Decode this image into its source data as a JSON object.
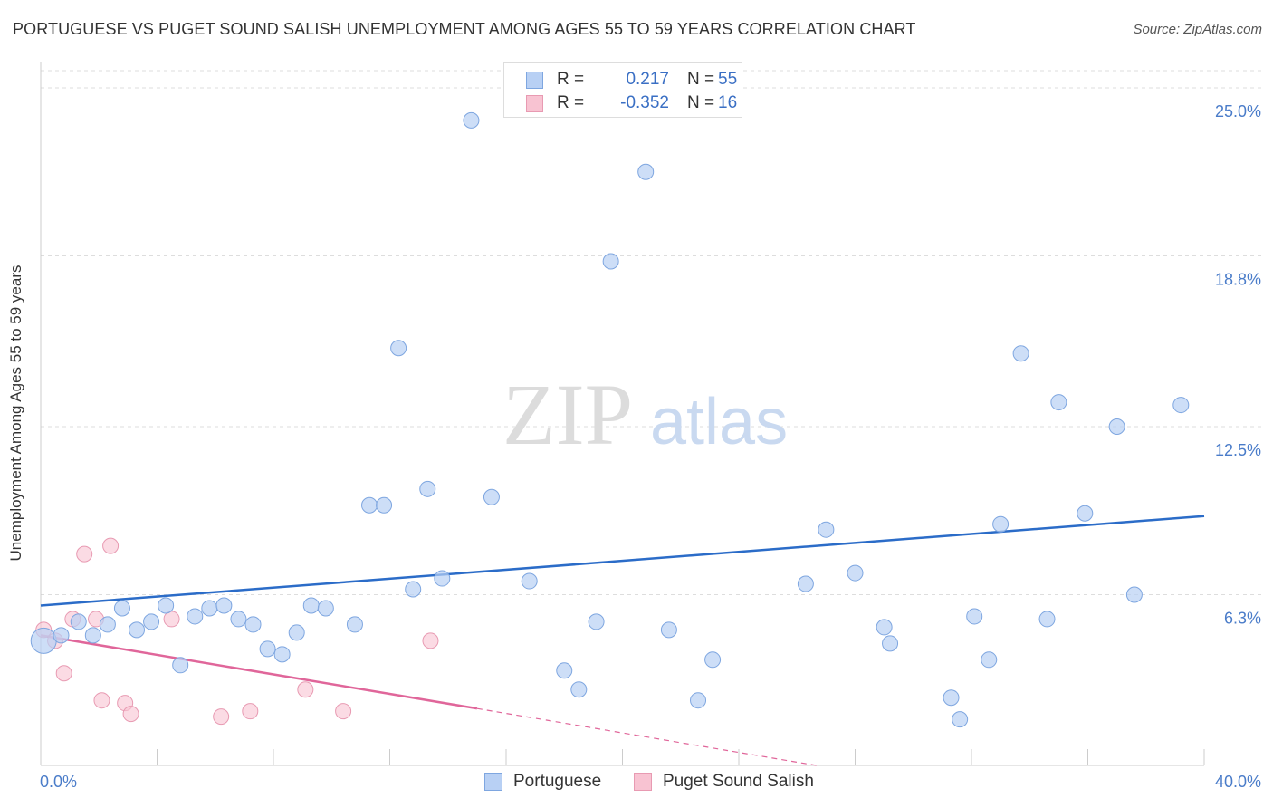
{
  "title": "PORTUGUESE VS PUGET SOUND SALISH UNEMPLOYMENT AMONG AGES 55 TO 59 YEARS CORRELATION CHART",
  "source": "Source: ZipAtlas.com",
  "watermark": {
    "zip": "ZIP",
    "atlas": "atlas"
  },
  "legend": {
    "r_label": "R =",
    "n_label": "N =",
    "portuguese": {
      "r": "0.217",
      "n": "55"
    },
    "salish": {
      "r": "-0.352",
      "n": "16"
    }
  },
  "colors": {
    "blue_fill": "#b8d0f4",
    "blue_stroke": "#7ea6e0",
    "blue_line": "#2b6cc8",
    "pink_fill": "#f8c3d2",
    "pink_stroke": "#e89ab2",
    "pink_line": "#e0669a",
    "axis_text": "#4a7cc9",
    "grid": "#dddddd"
  },
  "chart_data": {
    "type": "scatter",
    "title": "PORTUGUESE VS PUGET SOUND SALISH UNEMPLOYMENT AMONG AGES 55 TO 59 YEARS CORRELATION CHART",
    "xlabel": "",
    "ylabel": "Unemployment Among Ages 55 to 59 years",
    "xlim": [
      0,
      40
    ],
    "ylim": [
      0,
      25.0
    ],
    "x_tick_labels": [
      "0.0%",
      "40.0%"
    ],
    "y_ticks": [
      6.3,
      12.5,
      18.8,
      25.0
    ],
    "y_tick_labels": [
      "6.3%",
      "12.5%",
      "18.8%",
      "25.0%"
    ],
    "grid": true,
    "series": [
      {
        "name": "Portuguese",
        "r": 0.217,
        "n": 55,
        "trend": {
          "x0": 0,
          "y0": 5.9,
          "x1": 40,
          "y1": 9.2
        },
        "points": [
          [
            0.1,
            4.6
          ],
          [
            0.7,
            4.8
          ],
          [
            1.3,
            5.3
          ],
          [
            1.8,
            4.8
          ],
          [
            2.3,
            5.2
          ],
          [
            2.8,
            5.8
          ],
          [
            3.3,
            5.0
          ],
          [
            3.8,
            5.3
          ],
          [
            4.3,
            5.9
          ],
          [
            4.8,
            3.7
          ],
          [
            5.3,
            5.5
          ],
          [
            5.8,
            5.8
          ],
          [
            6.3,
            5.9
          ],
          [
            6.8,
            5.4
          ],
          [
            7.3,
            5.2
          ],
          [
            7.8,
            4.3
          ],
          [
            8.3,
            4.1
          ],
          [
            8.8,
            4.9
          ],
          [
            9.3,
            5.9
          ],
          [
            9.8,
            5.8
          ],
          [
            10.8,
            5.2
          ],
          [
            11.3,
            9.6
          ],
          [
            11.8,
            9.6
          ],
          [
            12.3,
            15.4
          ],
          [
            12.8,
            6.5
          ],
          [
            13.3,
            10.2
          ],
          [
            13.8,
            6.9
          ],
          [
            14.8,
            23.8
          ],
          [
            15.5,
            9.9
          ],
          [
            16.8,
            6.8
          ],
          [
            18.0,
            3.5
          ],
          [
            18.5,
            2.8
          ],
          [
            19.1,
            5.3
          ],
          [
            19.6,
            18.6
          ],
          [
            20.8,
            21.9
          ],
          [
            21.6,
            5.0
          ],
          [
            22.6,
            2.4
          ],
          [
            23.1,
            3.9
          ],
          [
            26.3,
            6.7
          ],
          [
            27.0,
            8.7
          ],
          [
            28.0,
            7.1
          ],
          [
            29.0,
            5.1
          ],
          [
            29.2,
            4.5
          ],
          [
            31.3,
            2.5
          ],
          [
            31.6,
            1.7
          ],
          [
            32.1,
            5.5
          ],
          [
            32.6,
            3.9
          ],
          [
            33.0,
            8.9
          ],
          [
            33.7,
            15.2
          ],
          [
            34.6,
            5.4
          ],
          [
            35.0,
            13.4
          ],
          [
            35.9,
            9.3
          ],
          [
            37.0,
            12.5
          ],
          [
            37.6,
            6.3
          ],
          [
            39.2,
            13.3
          ]
        ]
      },
      {
        "name": "Puget Sound Salish",
        "r": -0.352,
        "n": 16,
        "trend": {
          "x0": 0,
          "y0": 4.8,
          "x1": 15.0,
          "y1": 2.1
        },
        "trend_dashed": {
          "x0": 15.0,
          "y0": 2.1,
          "x1": 40,
          "y1": -2.4
        },
        "points": [
          [
            0.1,
            5.0
          ],
          [
            0.5,
            4.6
          ],
          [
            0.8,
            3.4
          ],
          [
            1.1,
            5.4
          ],
          [
            1.5,
            7.8
          ],
          [
            1.9,
            5.4
          ],
          [
            2.1,
            2.4
          ],
          [
            2.4,
            8.1
          ],
          [
            2.9,
            2.3
          ],
          [
            3.1,
            1.9
          ],
          [
            4.5,
            5.4
          ],
          [
            6.2,
            1.8
          ],
          [
            7.2,
            2.0
          ],
          [
            9.1,
            2.8
          ],
          [
            10.4,
            2.0
          ],
          [
            13.4,
            4.6
          ]
        ]
      }
    ]
  },
  "bottom_legend": {
    "portuguese": "Portuguese",
    "salish": "Puget Sound Salish"
  }
}
